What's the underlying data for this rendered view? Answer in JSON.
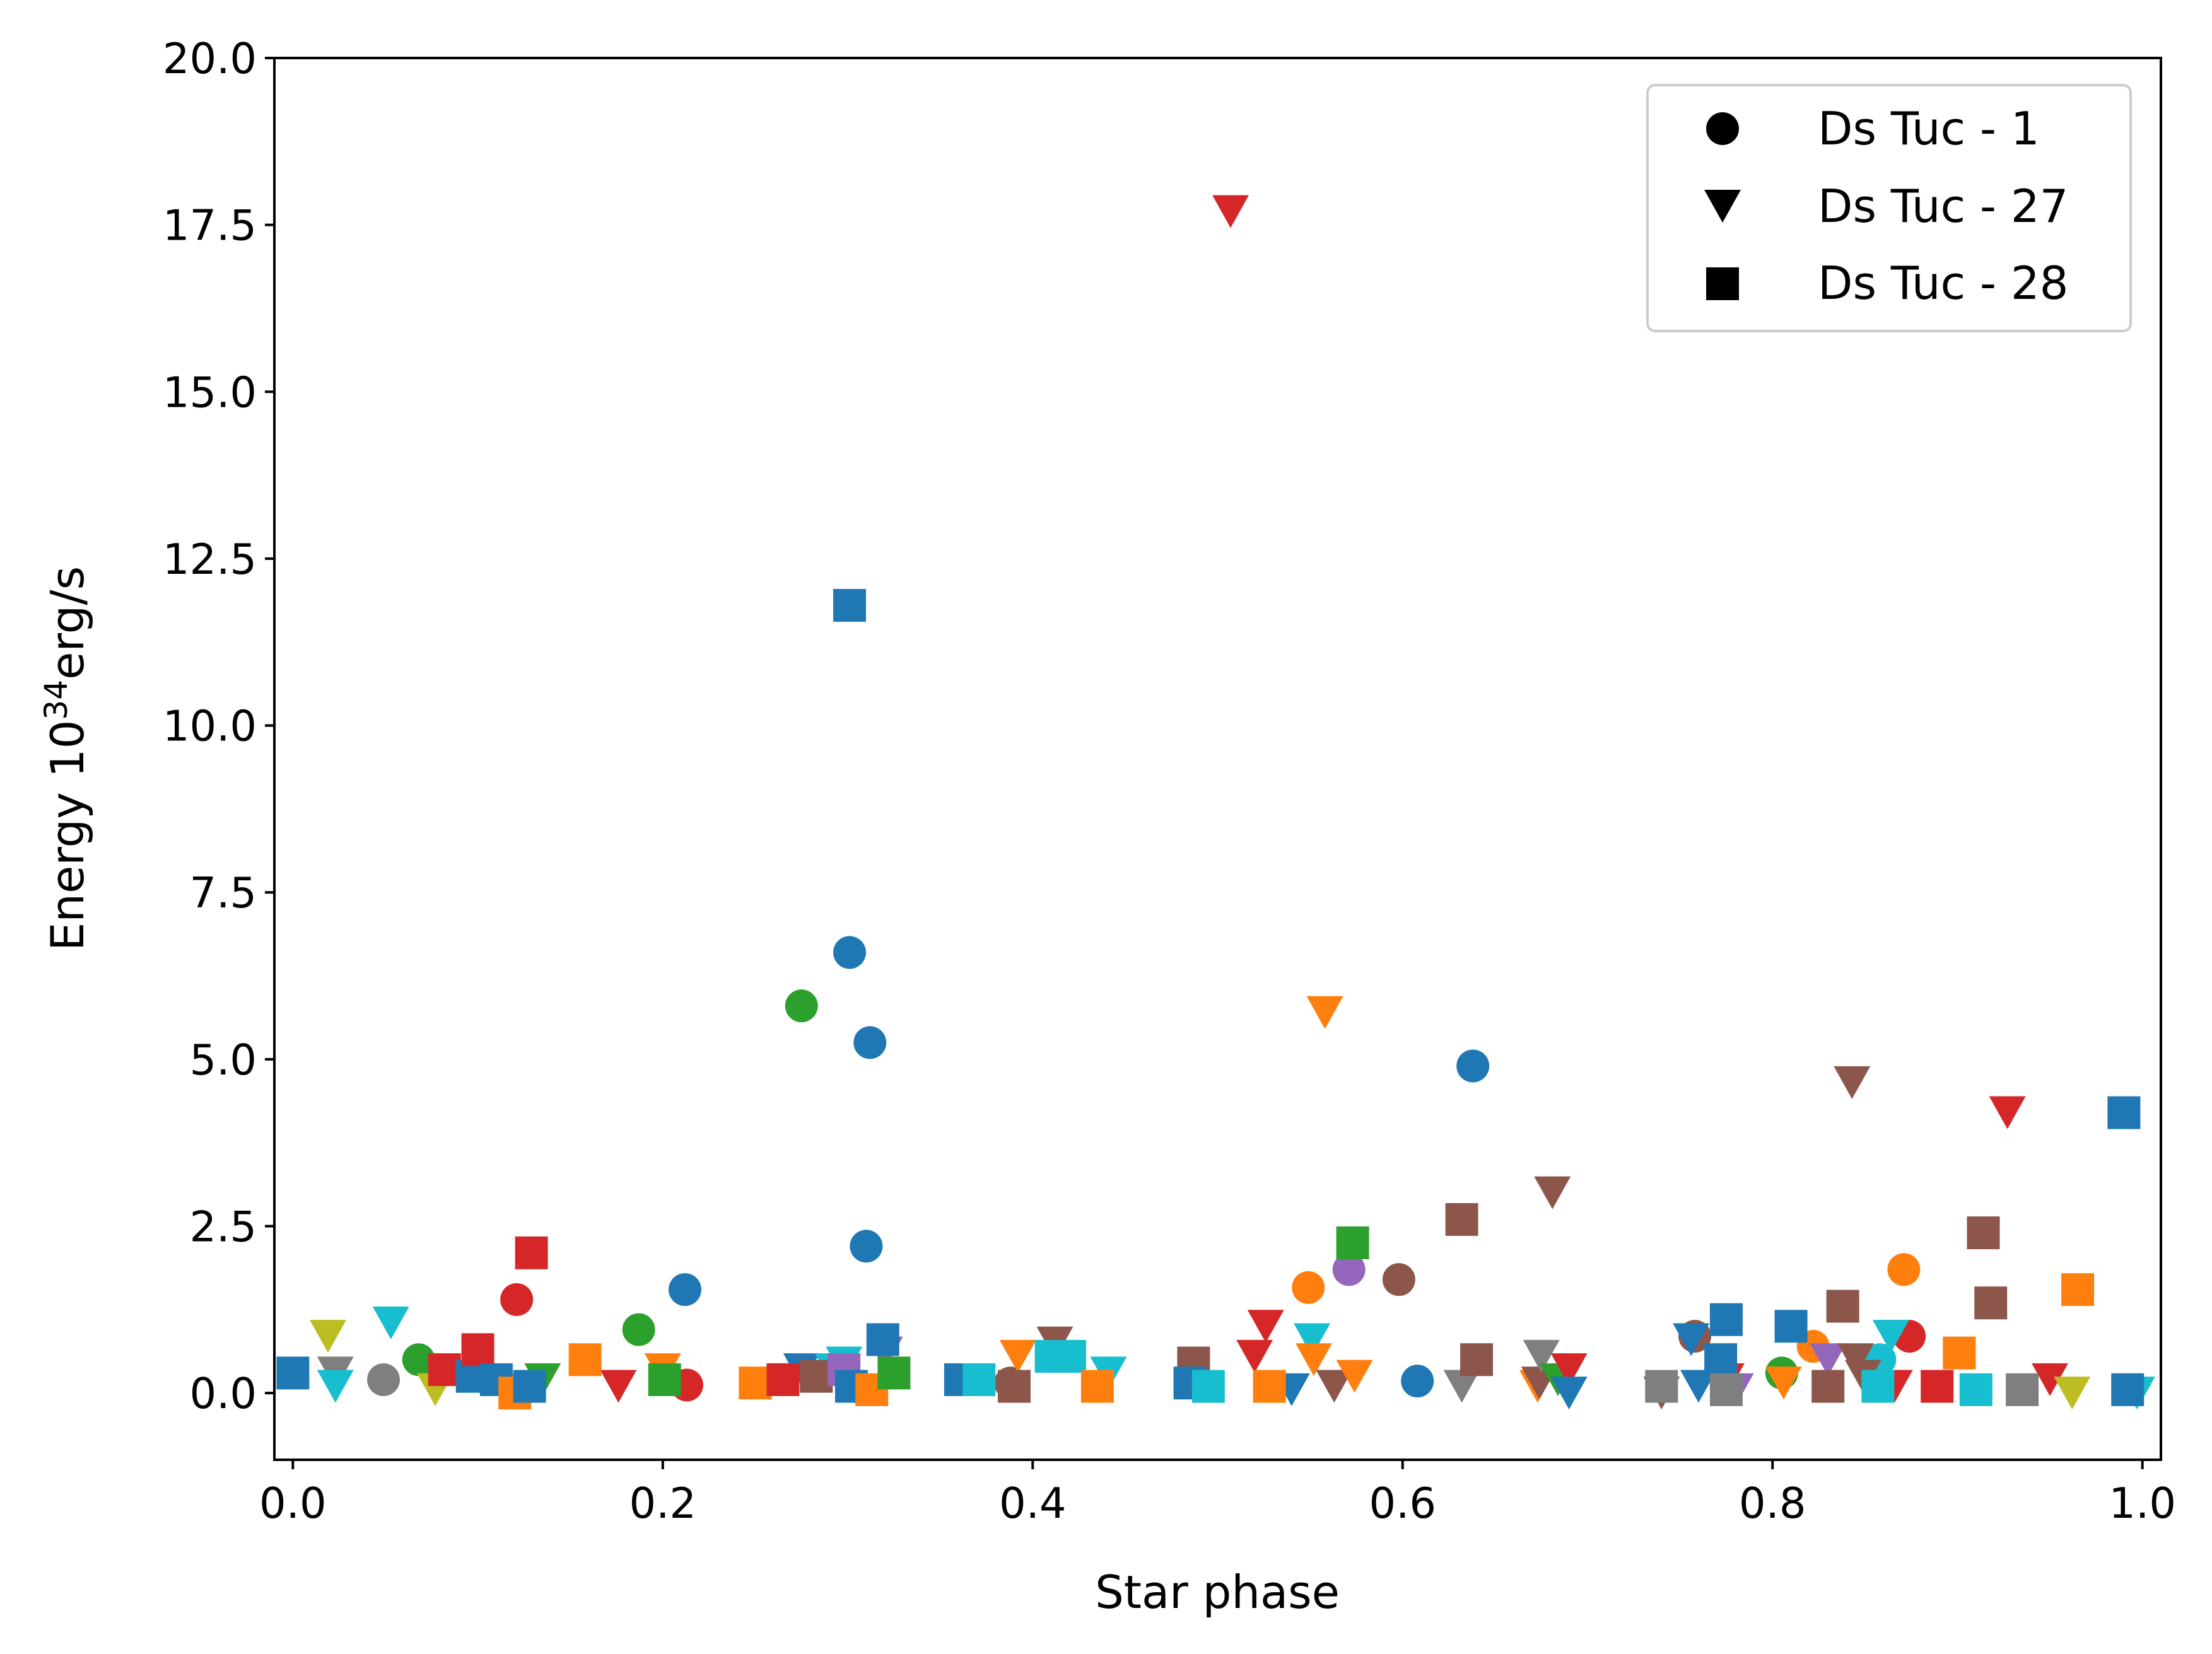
{
  "chart_data": {
    "type": "scatter",
    "title": "",
    "xlabel": "Star phase",
    "ylabel_main": "Energy 10",
    "ylabel_sup": "34",
    "ylabel_unit": "erg/s",
    "xlim": [
      -0.01,
      1.01
    ],
    "ylim": [
      -1.0,
      20.0
    ],
    "xticks": [
      0.0,
      0.2,
      0.4,
      0.6,
      0.8,
      1.0
    ],
    "xtick_labels": [
      "0.0",
      "0.2",
      "0.4",
      "0.6",
      "0.8",
      "1.0"
    ],
    "yticks": [
      0.0,
      2.5,
      5.0,
      7.5,
      10.0,
      12.5,
      15.0,
      17.5,
      20.0
    ],
    "ytick_labels": [
      "0.0",
      "2.5",
      "5.0",
      "7.5",
      "10.0",
      "12.5",
      "15.0",
      "17.5",
      "20.0"
    ],
    "grid": false,
    "legend": {
      "location": "top-right",
      "entries": [
        {
          "label": "Ds Tuc - 1",
          "marker": "circle"
        },
        {
          "label": "Ds Tuc - 27",
          "marker": "triangle-down"
        },
        {
          "label": "Ds Tuc - 28",
          "marker": "square"
        }
      ]
    },
    "palette": [
      "#1f77b4",
      "#ff7f0e",
      "#2ca02c",
      "#d62728",
      "#9467bd",
      "#8c564b",
      "#e377c2",
      "#7f7f7f",
      "#bcbd22",
      "#17becf"
    ],
    "series": [
      {
        "name": "Ds Tuc - 1",
        "marker": "circle",
        "points": [
          [
            0.049,
            0.2,
            "#7f7f7f"
          ],
          [
            0.068,
            0.5,
            "#2ca02c"
          ],
          [
            0.121,
            1.4,
            "#d62728"
          ],
          [
            0.187,
            0.95,
            "#2ca02c"
          ],
          [
            0.212,
            1.55,
            "#1f77b4"
          ],
          [
            0.213,
            0.12,
            "#d62728"
          ],
          [
            0.275,
            5.8,
            "#2ca02c"
          ],
          [
            0.301,
            6.6,
            "#1f77b4"
          ],
          [
            0.312,
            5.25,
            "#1f77b4"
          ],
          [
            0.31,
            2.2,
            "#1f77b4"
          ],
          [
            0.388,
            0.15,
            "#8c564b"
          ],
          [
            0.549,
            1.58,
            "#ff7f0e"
          ],
          [
            0.571,
            1.85,
            "#9467bd"
          ],
          [
            0.598,
            1.7,
            "#8c564b"
          ],
          [
            0.608,
            0.18,
            "#1f77b4"
          ],
          [
            0.638,
            4.9,
            "#1f77b4"
          ],
          [
            0.758,
            0.85,
            "#8c564b"
          ],
          [
            0.805,
            0.3,
            "#2ca02c"
          ],
          [
            0.822,
            0.7,
            "#ff7f0e"
          ],
          [
            0.858,
            0.5,
            "#17becf"
          ],
          [
            0.871,
            1.85,
            "#ff7f0e"
          ],
          [
            0.874,
            0.85,
            "#d62728"
          ]
        ]
      },
      {
        "name": "Ds Tuc - 27",
        "marker": "triangle-down",
        "points": [
          [
            0.019,
            0.85,
            "#bcbd22"
          ],
          [
            0.023,
            0.3,
            "#7f7f7f"
          ],
          [
            0.023,
            0.1,
            "#17becf"
          ],
          [
            0.053,
            1.05,
            "#17becf"
          ],
          [
            0.077,
            0.05,
            "#bcbd22"
          ],
          [
            0.117,
            0.05,
            "#bcbd22"
          ],
          [
            0.135,
            0.2,
            "#2ca02c"
          ],
          [
            0.176,
            0.1,
            "#d62728"
          ],
          [
            0.2,
            0.35,
            "#ff7f0e"
          ],
          [
            0.275,
            0.35,
            "#1f77b4"
          ],
          [
            0.292,
            0.35,
            "#17becf"
          ],
          [
            0.298,
            0.45,
            "#17becf"
          ],
          [
            0.32,
            0.6,
            "#9467bd"
          ],
          [
            0.392,
            0.55,
            "#ff7f0e"
          ],
          [
            0.412,
            0.75,
            "#8c564b"
          ],
          [
            0.441,
            0.3,
            "#17becf"
          ],
          [
            0.507,
            17.7,
            "#d62728"
          ],
          [
            0.52,
            0.55,
            "#d62728"
          ],
          [
            0.526,
            1.0,
            "#d62728"
          ],
          [
            0.54,
            0.05,
            "#1f77b4"
          ],
          [
            0.551,
            0.8,
            "#17becf"
          ],
          [
            0.552,
            0.5,
            "#ff7f0e"
          ],
          [
            0.558,
            5.7,
            "#ff7f0e"
          ],
          [
            0.563,
            0.1,
            "#8c564b"
          ],
          [
            0.574,
            0.25,
            "#ff7f0e"
          ],
          [
            0.632,
            0.1,
            "#7f7f7f"
          ],
          [
            0.673,
            0.1,
            "#ff7f0e"
          ],
          [
            0.674,
            0.15,
            "#8c564b"
          ],
          [
            0.675,
            0.55,
            "#7f7f7f"
          ],
          [
            0.681,
            3.0,
            "#8c564b"
          ],
          [
            0.684,
            0.2,
            "#2ca02c"
          ],
          [
            0.69,
            0.35,
            "#d62728"
          ],
          [
            0.69,
            0.0,
            "#1f77b4"
          ],
          [
            0.74,
            0.0,
            "#8c564b"
          ],
          [
            0.756,
            0.8,
            "#1f77b4"
          ],
          [
            0.76,
            0.1,
            "#1f77b4"
          ],
          [
            0.775,
            0.2,
            "#d62728"
          ],
          [
            0.78,
            0.05,
            "#9467bd"
          ],
          [
            0.806,
            0.15,
            "#ff7f0e"
          ],
          [
            0.83,
            0.5,
            "#9467bd"
          ],
          [
            0.843,
            4.65,
            "#8c564b"
          ],
          [
            0.845,
            0.5,
            "#8c564b"
          ],
          [
            0.849,
            0.25,
            "#8c564b"
          ],
          [
            0.866,
            0.1,
            "#d62728"
          ],
          [
            0.864,
            0.85,
            "#17becf"
          ],
          [
            0.927,
            4.2,
            "#d62728"
          ],
          [
            0.95,
            0.2,
            "#d62728"
          ],
          [
            0.962,
            0.0,
            "#bcbd22"
          ],
          [
            0.997,
            0.0,
            "#17becf"
          ]
        ]
      },
      {
        "name": "Ds Tuc - 28",
        "marker": "square",
        "points": [
          [
            0.0,
            0.3,
            "#1f77b4"
          ],
          [
            0.082,
            0.35,
            "#d62728"
          ],
          [
            0.097,
            0.25,
            "#1f77b4"
          ],
          [
            0.1,
            0.65,
            "#d62728"
          ],
          [
            0.11,
            0.2,
            "#1f77b4"
          ],
          [
            0.12,
            0.0,
            "#ff7f0e"
          ],
          [
            0.128,
            0.1,
            "#1f77b4"
          ],
          [
            0.129,
            2.1,
            "#d62728"
          ],
          [
            0.158,
            0.5,
            "#ff7f0e"
          ],
          [
            0.201,
            0.2,
            "#2ca02c"
          ],
          [
            0.25,
            0.15,
            "#ff7f0e"
          ],
          [
            0.265,
            0.2,
            "#d62728"
          ],
          [
            0.283,
            0.25,
            "#8c564b"
          ],
          [
            0.298,
            0.35,
            "#9467bd"
          ],
          [
            0.302,
            0.1,
            "#1f77b4"
          ],
          [
            0.301,
            11.8,
            "#1f77b4"
          ],
          [
            0.313,
            0.05,
            "#ff7f0e"
          ],
          [
            0.319,
            0.8,
            "#1f77b4"
          ],
          [
            0.325,
            0.3,
            "#2ca02c"
          ],
          [
            0.361,
            0.2,
            "#1f77b4"
          ],
          [
            0.371,
            0.2,
            "#17becf"
          ],
          [
            0.39,
            0.1,
            "#8c564b"
          ],
          [
            0.41,
            0.55,
            "#17becf"
          ],
          [
            0.42,
            0.55,
            "#17becf"
          ],
          [
            0.435,
            0.1,
            "#ff7f0e"
          ],
          [
            0.487,
            0.45,
            "#8c564b"
          ],
          [
            0.485,
            0.15,
            "#1f77b4"
          ],
          [
            0.495,
            0.1,
            "#17becf"
          ],
          [
            0.528,
            0.1,
            "#ff7f0e"
          ],
          [
            0.573,
            2.25,
            "#2ca02c"
          ],
          [
            0.632,
            2.6,
            "#8c564b"
          ],
          [
            0.64,
            0.5,
            "#8c564b"
          ],
          [
            0.74,
            0.1,
            "#7f7f7f"
          ],
          [
            0.772,
            0.5,
            "#1f77b4"
          ],
          [
            0.775,
            1.1,
            "#1f77b4"
          ],
          [
            0.775,
            0.05,
            "#7f7f7f"
          ],
          [
            0.81,
            1.0,
            "#1f77b4"
          ],
          [
            0.83,
            0.1,
            "#8c564b"
          ],
          [
            0.838,
            1.3,
            "#8c564b"
          ],
          [
            0.857,
            0.1,
            "#17becf"
          ],
          [
            0.889,
            0.1,
            "#d62728"
          ],
          [
            0.901,
            0.6,
            "#ff7f0e"
          ],
          [
            0.91,
            0.05,
            "#17becf"
          ],
          [
            0.914,
            2.4,
            "#8c564b"
          ],
          [
            0.918,
            1.35,
            "#8c564b"
          ],
          [
            0.935,
            0.05,
            "#7f7f7f"
          ],
          [
            0.965,
            1.55,
            "#ff7f0e"
          ],
          [
            0.99,
            4.2,
            "#1f77b4"
          ],
          [
            0.992,
            0.05,
            "#1f77b4"
          ]
        ]
      }
    ]
  }
}
